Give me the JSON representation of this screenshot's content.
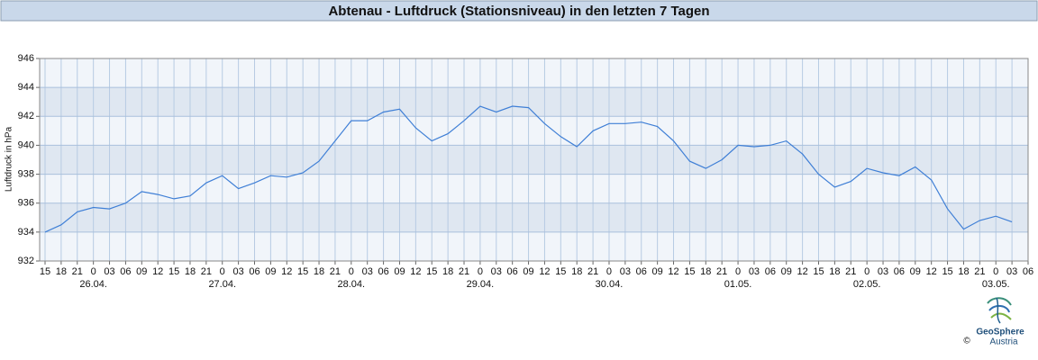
{
  "chart_data": {
    "type": "line",
    "title": "Abtenau - Luftdruck (Stationsniveau) in den letzten 7 Tagen",
    "ylabel": "Luftdruck in hPa",
    "categories": [
      "15",
      "18",
      "21",
      "0",
      "03",
      "06",
      "09",
      "12",
      "15",
      "18",
      "21",
      "0",
      "03",
      "06",
      "09",
      "12",
      "15",
      "18",
      "21",
      "0",
      "03",
      "06",
      "09",
      "12",
      "15",
      "18",
      "21",
      "0",
      "03",
      "06",
      "09",
      "12",
      "15",
      "18",
      "21",
      "0",
      "03",
      "06",
      "09",
      "12",
      "15",
      "18",
      "21",
      "0",
      "03",
      "06",
      "09",
      "12",
      "15",
      "18",
      "21",
      "0",
      "03",
      "06",
      "09",
      "12",
      "15",
      "18",
      "21",
      "0",
      "03",
      "06"
    ],
    "dates": [
      null,
      null,
      null,
      "26.04.",
      null,
      null,
      null,
      null,
      null,
      null,
      null,
      "27.04.",
      null,
      null,
      null,
      null,
      null,
      null,
      null,
      "28.04.",
      null,
      null,
      null,
      null,
      null,
      null,
      null,
      "29.04.",
      null,
      null,
      null,
      null,
      null,
      null,
      null,
      "30.04.",
      null,
      null,
      null,
      null,
      null,
      null,
      null,
      "01.05.",
      null,
      null,
      null,
      null,
      null,
      null,
      null,
      "02.05.",
      null,
      null,
      null,
      null,
      null,
      null,
      null,
      "03.05.",
      null,
      null
    ],
    "values": [
      934.0,
      934.5,
      935.4,
      935.7,
      935.6,
      936.0,
      936.8,
      936.6,
      936.3,
      936.5,
      937.4,
      937.9,
      937.0,
      937.4,
      937.9,
      937.8,
      938.1,
      938.9,
      940.3,
      941.7,
      941.7,
      942.3,
      942.5,
      941.2,
      940.3,
      940.8,
      941.7,
      942.7,
      942.3,
      942.7,
      942.6,
      941.5,
      940.6,
      939.9,
      941.0,
      941.5,
      941.5,
      941.6,
      941.3,
      940.3,
      938.9,
      938.4,
      939.0,
      940.0,
      939.9,
      940.0,
      940.3,
      939.4,
      938.0,
      937.1,
      937.5,
      938.4,
      938.1,
      937.9,
      938.5,
      937.6,
      935.6,
      934.2,
      934.8,
      935.1,
      934.7,
      null
    ],
    "color": "#3f7fd6",
    "ylim": [
      932,
      946
    ],
    "yticks": [
      932,
      934,
      936,
      938,
      940,
      942,
      944,
      946
    ],
    "grid": true,
    "credit": {
      "name": "GeoSphere",
      "country": "Austria",
      "symbol": "©"
    }
  }
}
